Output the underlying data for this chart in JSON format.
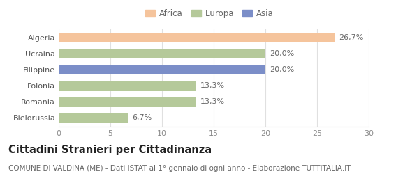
{
  "categories": [
    "Algeria",
    "Ucraina",
    "Filippine",
    "Polonia",
    "Romania",
    "Bielorussia"
  ],
  "values": [
    26.7,
    20.0,
    20.0,
    13.3,
    13.3,
    6.7
  ],
  "labels": [
    "26,7%",
    "20,0%",
    "20,0%",
    "13,3%",
    "13,3%",
    "6,7%"
  ],
  "colors": [
    "#F5C49C",
    "#B5C99A",
    "#7B8EC8",
    "#B5C99A",
    "#B5C99A",
    "#B5C99A"
  ],
  "legend_labels": [
    "Africa",
    "Europa",
    "Asia"
  ],
  "legend_colors": [
    "#F5C49C",
    "#B5C99A",
    "#7B8EC8"
  ],
  "xlim": [
    0,
    30
  ],
  "xticks": [
    0,
    5,
    10,
    15,
    20,
    25,
    30
  ],
  "title": "Cittadini Stranieri per Cittadinanza",
  "subtitle": "COMUNE DI VALDINA (ME) - Dati ISTAT al 1° gennaio di ogni anno - Elaborazione TUTTITALIA.IT",
  "background_color": "#ffffff",
  "bar_height": 0.55,
  "title_fontsize": 10.5,
  "subtitle_fontsize": 7.5,
  "label_fontsize": 8,
  "tick_fontsize": 8,
  "legend_fontsize": 8.5
}
